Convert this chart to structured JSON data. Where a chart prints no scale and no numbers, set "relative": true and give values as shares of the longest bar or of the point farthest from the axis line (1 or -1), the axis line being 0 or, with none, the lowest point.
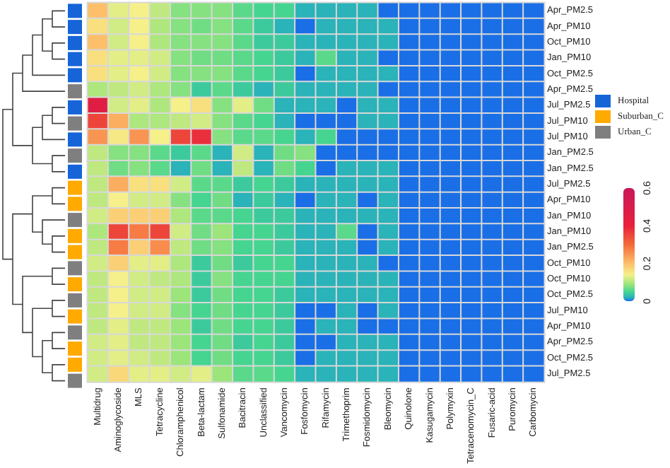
{
  "chart_data": [
    {
      "type": "heatmap",
      "categories": [
        "Multidrug",
        "Aminoglycoside",
        "MLS",
        "Tetracycline",
        "Chloramphenicol",
        "Beta-lactam",
        "Sulfonamide",
        "Bacitracin",
        "Unclassified",
        "Vancomycin",
        "Fosfomycin",
        "Rifamycin",
        "Trimethoprim",
        "Fosmidomycin",
        "Bleomycin",
        "Quinolone",
        "Kasugamycin",
        "Polymyxin",
        "Tetracenomycin_C",
        "Fusaric-acid",
        "Puromycin",
        "Carbomycin"
      ],
      "y_categories": [
        "Apr_PM2.5",
        "Apr_PM10",
        "Oct_PM10",
        "Jan_PM10",
        "Oct_PM2.5",
        "Apr_PM2.5",
        "Jul_PM2.5",
        "Jul_PM10",
        "Jul_PM10",
        "Jan_PM2.5",
        "Jan_PM2.5",
        "Jul_PM2.5",
        "Apr_PM10",
        "Jan_PM10",
        "Jan_PM10",
        "Jan_PM2.5",
        "Oct_PM10",
        "Oct_PM10",
        "Oct_PM2.5",
        "Jul_PM10",
        "Apr_PM10",
        "Apr_PM2.5",
        "Oct_PM2.5",
        "Jul_PM2.5"
      ],
      "cells": [
        [
          0.2,
          0.13,
          0.14,
          0.11,
          0.08,
          0.08,
          0.08,
          0.06,
          0.05,
          0.05,
          0.02,
          0.02,
          0.02,
          0.02,
          0,
          0,
          0,
          0,
          0,
          0,
          0,
          0
        ],
        [
          0.16,
          0.12,
          0.14,
          0.1,
          0.08,
          0.07,
          0.08,
          0.06,
          0.04,
          0.02,
          0,
          0.02,
          0.02,
          0.02,
          0.02,
          0,
          0,
          0,
          0,
          0,
          0,
          0
        ],
        [
          0.2,
          0.12,
          0.14,
          0.1,
          0.08,
          0.08,
          0.08,
          0.06,
          0.04,
          0.04,
          0.02,
          0.02,
          0.02,
          0.02,
          0.02,
          0,
          0,
          0,
          0,
          0,
          0,
          0
        ],
        [
          0.16,
          0.13,
          0.13,
          0.12,
          0.08,
          0.07,
          0.07,
          0.06,
          0.05,
          0.04,
          0.02,
          0.06,
          0.02,
          0.02,
          0,
          0,
          0,
          0,
          0,
          0,
          0,
          0
        ],
        [
          0.16,
          0.13,
          0.14,
          0.12,
          0.08,
          0.08,
          0.08,
          0.06,
          0.05,
          0.04,
          0,
          0.02,
          0.02,
          0.02,
          0.02,
          0,
          0,
          0,
          0,
          0,
          0,
          0
        ],
        [
          0.1,
          0.11,
          0.12,
          0.1,
          0.08,
          0.04,
          0.06,
          0.04,
          0.02,
          0.04,
          0.02,
          0.02,
          0.02,
          0.02,
          0,
          0,
          0,
          0,
          0,
          0,
          0,
          0
        ],
        [
          0.45,
          0.12,
          0.13,
          0.1,
          0.14,
          0.16,
          0.08,
          0.13,
          0.07,
          0.02,
          0.02,
          0.02,
          0,
          0.02,
          0.02,
          0,
          0,
          0,
          0,
          0,
          0,
          0
        ],
        [
          0.35,
          0.22,
          0.1,
          0.1,
          0.11,
          0.12,
          0.08,
          0.06,
          0.05,
          0.02,
          0,
          0,
          0,
          0.02,
          0.02,
          0,
          0,
          0,
          0,
          0,
          0,
          0
        ],
        [
          0.25,
          0.15,
          0.25,
          0.14,
          0.35,
          0.38,
          0.08,
          0.06,
          0.06,
          0.05,
          0.02,
          0.05,
          0,
          0,
          0,
          0,
          0,
          0,
          0,
          0,
          0,
          0
        ],
        [
          0.11,
          0.08,
          0.08,
          0.06,
          0.04,
          0.06,
          0.02,
          0.12,
          0.02,
          0.07,
          0.08,
          0,
          0,
          0,
          0,
          0,
          0,
          0,
          0,
          0,
          0,
          0
        ],
        [
          0.11,
          0.07,
          0.08,
          0.06,
          0.02,
          0.07,
          0.02,
          0.11,
          0.02,
          0.07,
          0.05,
          0,
          0.02,
          0.02,
          0.02,
          0,
          0,
          0,
          0,
          0,
          0,
          0
        ],
        [
          0.11,
          0.22,
          0.16,
          0.16,
          0.12,
          0.06,
          0.06,
          0.04,
          0.05,
          0.04,
          0.02,
          0.02,
          0.02,
          0.02,
          0.02,
          0,
          0,
          0,
          0,
          0,
          0,
          0
        ],
        [
          0.11,
          0.14,
          0.12,
          0.12,
          0.08,
          0.05,
          0.07,
          0.02,
          0.04,
          0.02,
          0,
          0.02,
          0.02,
          0,
          0.02,
          0,
          0,
          0,
          0,
          0,
          0,
          0
        ],
        [
          0.12,
          0.18,
          0.18,
          0.18,
          0.1,
          0.06,
          0.06,
          0.05,
          0.04,
          0.04,
          0.02,
          0.02,
          0.02,
          0.02,
          0.02,
          0,
          0,
          0,
          0,
          0,
          0,
          0
        ],
        [
          0.1,
          0.35,
          0.28,
          0.35,
          0.12,
          0.07,
          0.09,
          0.05,
          0.05,
          0.04,
          0.02,
          0.02,
          0.06,
          0,
          0.02,
          0,
          0,
          0,
          0,
          0,
          0,
          0
        ],
        [
          0.11,
          0.28,
          0.18,
          0.26,
          0.11,
          0.07,
          0.08,
          0.05,
          0.05,
          0.04,
          0.02,
          0.02,
          0.02,
          0,
          0.02,
          0,
          0,
          0,
          0,
          0,
          0,
          0
        ],
        [
          0.12,
          0.18,
          0.13,
          0.13,
          0.1,
          0.04,
          0.07,
          0.04,
          0.05,
          0.05,
          0.02,
          0.02,
          0.02,
          0.02,
          0,
          0,
          0,
          0,
          0,
          0,
          0,
          0
        ],
        [
          0.11,
          0.14,
          0.12,
          0.11,
          0.1,
          0.04,
          0.08,
          0.05,
          0.05,
          0.05,
          0.02,
          0.02,
          0.02,
          0.02,
          0.02,
          0,
          0,
          0,
          0,
          0,
          0,
          0
        ],
        [
          0.11,
          0.14,
          0.12,
          0.12,
          0.09,
          0.04,
          0.07,
          0.05,
          0.05,
          0.04,
          0.02,
          0.02,
          0.02,
          0.02,
          0.02,
          0,
          0,
          0,
          0,
          0,
          0,
          0
        ],
        [
          0.11,
          0.14,
          0.12,
          0.12,
          0.08,
          0.05,
          0.07,
          0.05,
          0.05,
          0.04,
          0,
          0,
          0.02,
          0,
          0.02,
          0,
          0,
          0,
          0,
          0,
          0,
          0
        ],
        [
          0.11,
          0.13,
          0.11,
          0.11,
          0.09,
          0.04,
          0.07,
          0.05,
          0.05,
          0.04,
          0,
          0.02,
          0.02,
          0,
          0,
          0,
          0,
          0,
          0,
          0,
          0,
          0
        ],
        [
          0.12,
          0.13,
          0.11,
          0.11,
          0.09,
          0.05,
          0.07,
          0.04,
          0.05,
          0.04,
          0,
          0,
          0.02,
          0.02,
          0.02,
          0,
          0,
          0,
          0,
          0,
          0,
          0
        ],
        [
          0.12,
          0.13,
          0.12,
          0.11,
          0.09,
          0.05,
          0.07,
          0.05,
          0.05,
          0.04,
          0,
          0.02,
          0.02,
          0.02,
          0.02,
          0,
          0,
          0,
          0,
          0,
          0,
          0
        ],
        [
          0.12,
          0.17,
          0.13,
          0.13,
          0.12,
          0.13,
          0.09,
          0.06,
          0.06,
          0.05,
          0.02,
          0.02,
          0.02,
          0.02,
          0.02,
          0,
          0,
          0,
          0,
          0,
          0,
          0
        ]
      ],
      "clim": [
        0,
        0.6
      ],
      "cticks": [
        0,
        0.2,
        0.4,
        0.6
      ]
    },
    {
      "type": "bar",
      "orientation": "horizontal",
      "stacked": true,
      "relative": true,
      "legend": "right",
      "categories": [
        null,
        null,
        null,
        null,
        null,
        null,
        null,
        null,
        null,
        null,
        null,
        null,
        null,
        null,
        null,
        null,
        null,
        null,
        null,
        null,
        null,
        null,
        null,
        null
      ],
      "series": [
        {
          "name": "Hospital",
          "color": "#1565d8",
          "values": [
            1,
            1,
            1,
            1,
            1,
            null,
            1,
            null,
            1,
            null,
            1,
            null,
            null,
            null,
            null,
            null,
            null,
            null,
            null,
            null,
            null,
            null,
            null,
            null
          ]
        },
        {
          "name": "Suburban_C",
          "color": "#ffaa00",
          "values": [
            null,
            null,
            null,
            null,
            null,
            null,
            null,
            null,
            null,
            null,
            null,
            1,
            1,
            null,
            1,
            1,
            null,
            1,
            null,
            1,
            null,
            1,
            1,
            null
          ]
        },
        {
          "name": "Urban_C",
          "color": "#7f7f7f",
          "values": [
            null,
            null,
            null,
            null,
            null,
            1,
            null,
            1,
            null,
            1,
            null,
            null,
            null,
            1,
            null,
            null,
            1,
            null,
            1,
            null,
            1,
            null,
            null,
            1
          ]
        }
      ]
    }
  ]
}
